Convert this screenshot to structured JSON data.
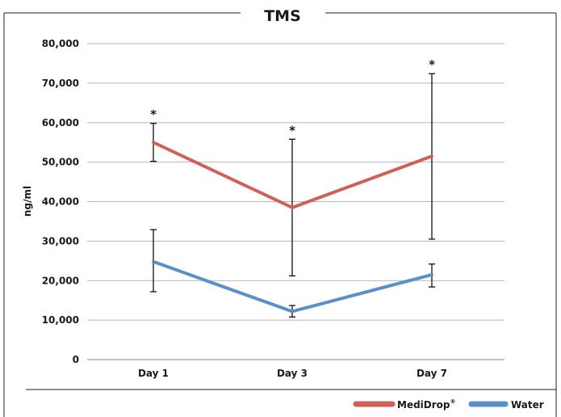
{
  "chart_data": {
    "type": "line",
    "title": "TMS",
    "xlabel": "",
    "ylabel": "ng/ml",
    "categories": [
      "Day 1",
      "Day 3",
      "Day 7"
    ],
    "ylim": [
      0,
      80000
    ],
    "yticks": [
      0,
      10000,
      20000,
      30000,
      40000,
      50000,
      60000,
      70000,
      80000
    ],
    "ytick_labels": [
      "0",
      "10,000",
      "20,000",
      "30,000",
      "40,000",
      "50,000",
      "60,000",
      "70,000",
      "80,000"
    ],
    "grid": true,
    "legend_position": "bottom-right",
    "series": [
      {
        "name": "MediDrop®",
        "legend_text": "MediDrop",
        "legend_sup": "®",
        "color": "#D0605A",
        "values": [
          55000,
          38500,
          51500
        ],
        "error_low": [
          50200,
          21200,
          30500
        ],
        "error_high": [
          59800,
          55800,
          72400
        ],
        "annotations": [
          "*",
          "*",
          "*"
        ]
      },
      {
        "name": "Water",
        "legend_text": "Water",
        "legend_sup": "",
        "color": "#5B8FC9",
        "values": [
          24800,
          12200,
          21500
        ],
        "error_low": [
          17200,
          10800,
          18400
        ],
        "error_high": [
          32900,
          13700,
          24200
        ],
        "annotations": [
          "",
          "",
          ""
        ]
      }
    ]
  }
}
